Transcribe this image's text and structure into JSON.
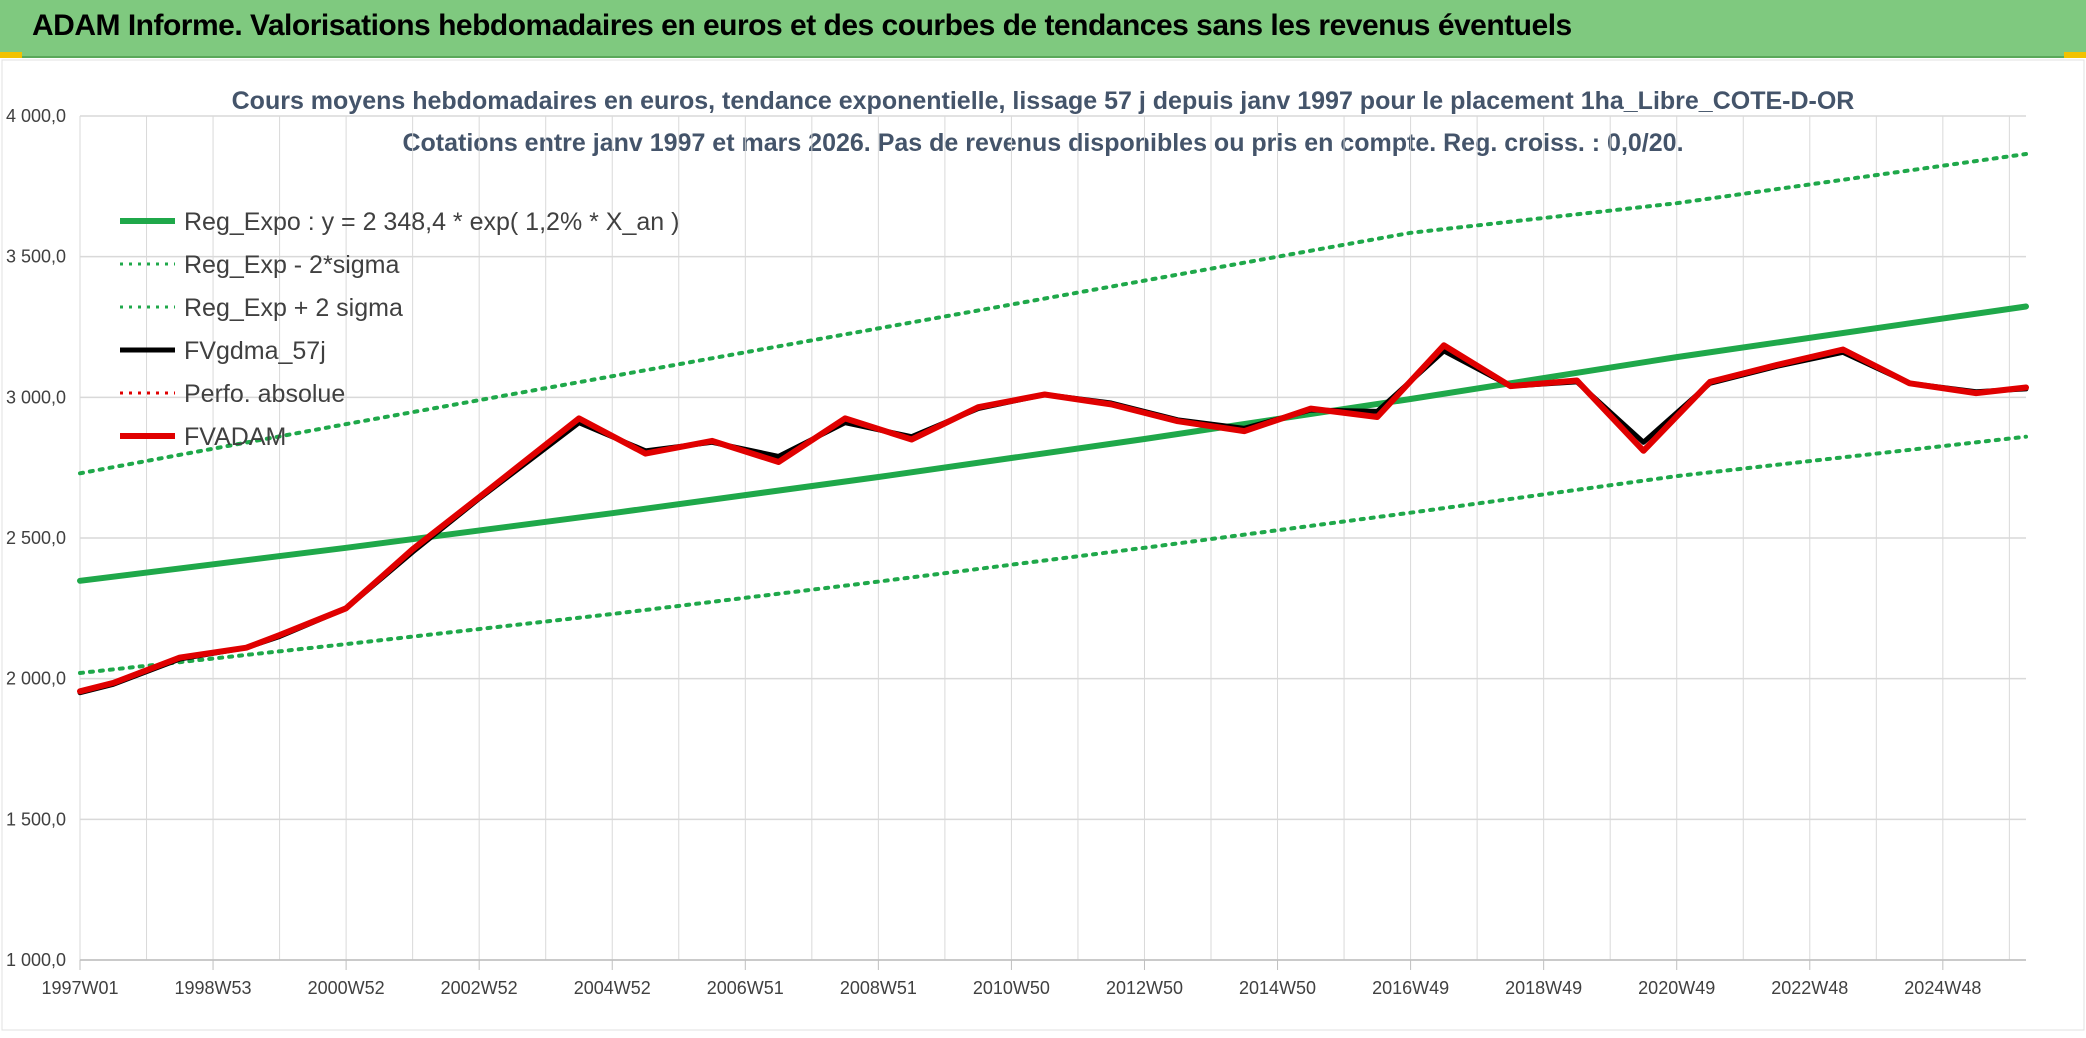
{
  "header": {
    "title": "ADAM Informe. Valorisations hebdomadaires en euros et des courbes de tendances sans les revenus éventuels"
  },
  "colors": {
    "banner": "#7fc97f",
    "reg_expo": "#1fa84a",
    "sigma": "#1fa84a",
    "fvgdma": "#000000",
    "perfo": "#e00000",
    "fvadam": "#e00000",
    "grid": "#d9d9d9"
  },
  "chart_data": {
    "type": "line",
    "title": "Cours moyens hebdomadaires en euros, tendance exponentielle, lissage 57 j depuis janv 1997 pour le placement 1ha_Libre_COTE-D-OR",
    "subtitle": "Cotations entre janv 1997 et mars 2026. Pas de revenus disponibles ou pris en compte. Reg. croiss. : 0,0/20.",
    "ylim": [
      1000,
      4000
    ],
    "y_ticks": [
      "1 000,0",
      "1 500,0",
      "2 000,0",
      "2 500,0",
      "3 000,0",
      "3 500,0",
      "4 000,0"
    ],
    "y_tick_values": [
      1000,
      1500,
      2000,
      2500,
      3000,
      3500,
      4000
    ],
    "x_range": [
      1997.0,
      2026.25
    ],
    "x_ticks": [
      "1997W01",
      "1998W53",
      "2000W52",
      "2002W52",
      "2004W52",
      "2006W51",
      "2008W51",
      "2010W50",
      "2012W50",
      "2014W50",
      "2016W49",
      "2018W49",
      "2020W49",
      "2022W48",
      "2024W48"
    ],
    "x_tick_positions": [
      1997.0,
      1999.0,
      2001.0,
      2003.0,
      2005.0,
      2007.0,
      2009.0,
      2011.0,
      2013.0,
      2015.0,
      2017.0,
      2019.0,
      2021.0,
      2023.0,
      2025.0
    ],
    "grid": true,
    "legend_position": "top-left",
    "series": [
      {
        "name": "Reg_Expo : y = 2 348,4 * exp( 1,2% *  X_an )",
        "style": "solid-thick",
        "color": "#1fa84a",
        "x": [
          1997.0,
          2001.0,
          2005.0,
          2009.0,
          2013.0,
          2017.0,
          2021.0,
          2026.25
        ],
        "y": [
          2348,
          2465,
          2588,
          2717,
          2852,
          2994,
          3143,
          3323
        ]
      },
      {
        "name": "Reg_Exp - 2*sigma",
        "style": "dotted",
        "color": "#1fa84a",
        "x": [
          1997.0,
          2001.0,
          2005.0,
          2009.0,
          2013.0,
          2017.0,
          2021.0,
          2026.25
        ],
        "y": [
          2020,
          2123,
          2230,
          2345,
          2465,
          2590,
          2720,
          2860
        ]
      },
      {
        "name": "Reg_Exp + 2 sigma",
        "style": "dotted",
        "color": "#1fa84a",
        "x": [
          1997.0,
          2001.0,
          2005.0,
          2009.0,
          2013.0,
          2017.0,
          2021.0,
          2026.25
        ],
        "y": [
          2730,
          2905,
          3075,
          3245,
          3415,
          3585,
          3690,
          3865
        ]
      },
      {
        "name": "FVgdma_57j",
        "style": "solid",
        "color": "#000000",
        "x": [
          1997.0,
          1997.5,
          1998.5,
          1999.5,
          2000.0,
          2001.0,
          2002.0,
          2003.0,
          2004.5,
          2005.5,
          2006.5,
          2007.5,
          2008.5,
          2009.5,
          2010.5,
          2011.5,
          2012.5,
          2013.5,
          2014.5,
          2015.5,
          2016.5,
          2017.5,
          2018.5,
          2019.5,
          2020.5,
          2021.5,
          2022.5,
          2023.5,
          2024.5,
          2025.5,
          2026.25
        ],
        "y": [
          1950,
          1980,
          2070,
          2110,
          2150,
          2250,
          2450,
          2640,
          2910,
          2810,
          2840,
          2790,
          2910,
          2860,
          2960,
          3010,
          2980,
          2920,
          2890,
          2955,
          2950,
          3165,
          3040,
          3055,
          2840,
          3050,
          3110,
          3160,
          3050,
          3020,
          3030
        ]
      },
      {
        "name": "Perfo. absolue",
        "style": "dotted",
        "color": "#e00000",
        "x": [],
        "y": []
      },
      {
        "name": "FVADAM",
        "style": "solid-thick",
        "color": "#e00000",
        "x": [
          1997.0,
          1997.5,
          1998.5,
          1999.5,
          2000.0,
          2001.0,
          2002.0,
          2003.0,
          2004.5,
          2005.5,
          2006.5,
          2007.5,
          2008.5,
          2009.5,
          2010.5,
          2011.5,
          2012.5,
          2013.5,
          2014.5,
          2015.5,
          2016.5,
          2017.5,
          2018.5,
          2019.5,
          2020.5,
          2021.5,
          2022.5,
          2023.5,
          2024.5,
          2025.5,
          2026.25
        ],
        "y": [
          1955,
          1985,
          2075,
          2110,
          2155,
          2250,
          2460,
          2645,
          2925,
          2800,
          2845,
          2770,
          2925,
          2850,
          2965,
          3010,
          2975,
          2915,
          2880,
          2960,
          2930,
          3185,
          3040,
          3060,
          2810,
          3055,
          3115,
          3170,
          3050,
          3015,
          3035
        ]
      }
    ]
  }
}
